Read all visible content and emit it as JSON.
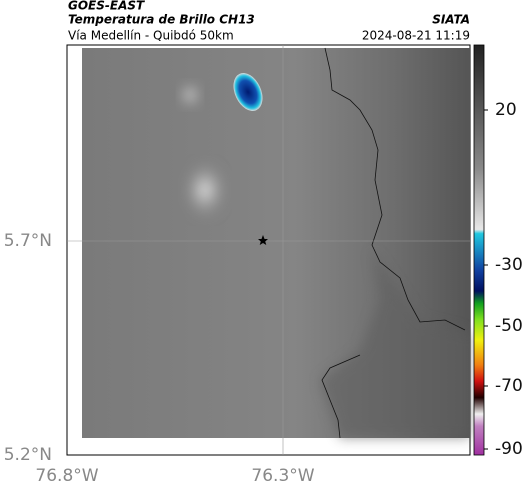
{
  "header": {
    "title": "GOES-EAST",
    "subtitle": "Temperatura de Brillo CH13",
    "route": "Vía Medellín - Quibdó 50km",
    "source": "SIATA",
    "datetime": "2024-08-21 11:19"
  },
  "latitude_labels": [
    "5.7°N",
    "5.2°N"
  ],
  "longitude_labels": [
    "76.8°W",
    "76.3°W"
  ],
  "colorbar": {
    "ticks": [
      20,
      -30,
      -50,
      -70,
      -90
    ]
  }
}
